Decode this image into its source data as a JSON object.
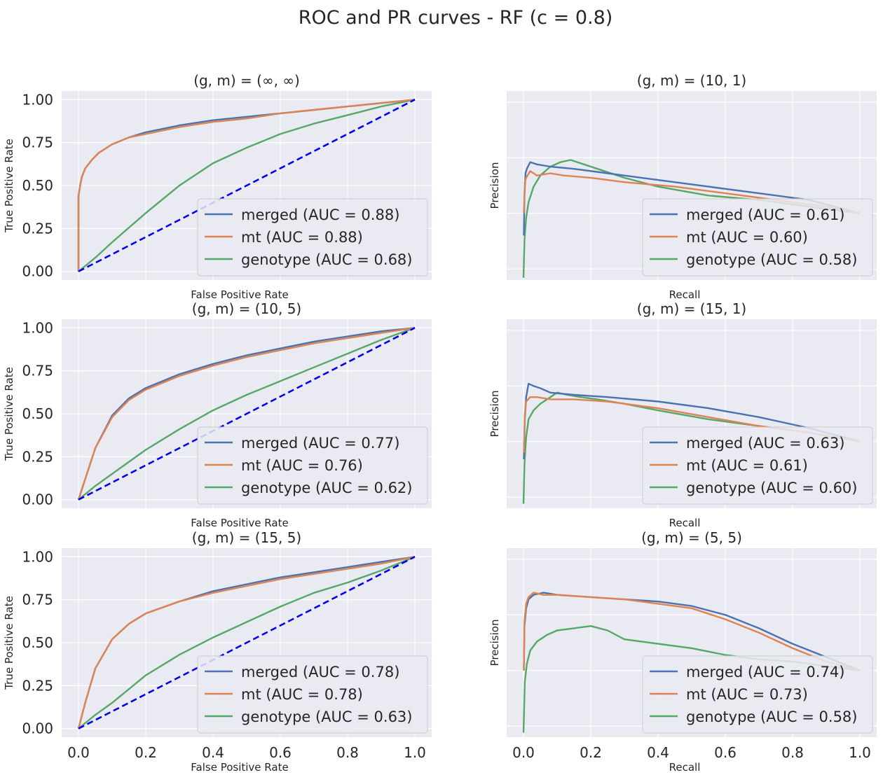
{
  "suptitle": "ROC and PR curves - RF (c = 0.8)",
  "colors": {
    "merged": "#4c72b0",
    "mt": "#dd8452",
    "genotype": "#55a868",
    "diagonal": "#0000ee",
    "panel_bg": "#eaeaf2",
    "grid": "#ffffff"
  },
  "chart_data": [
    {
      "type": "line",
      "kind": "roc",
      "title": "(g, m) = (∞, ∞)",
      "xlabel": "False Positive Rate",
      "ylabel": "True Positive Rate",
      "xlim": [
        -0.05,
        1.05
      ],
      "ylim": [
        -0.05,
        1.05
      ],
      "grid": true,
      "legend": "lower-right",
      "show_xticks": false,
      "show_yticks": true,
      "xticks": [
        "0.0",
        "0.2",
        "0.4",
        "0.6",
        "0.8",
        "1.0"
      ],
      "yticks": [
        "0.00",
        "0.25",
        "0.50",
        "0.75",
        "1.00"
      ],
      "series": [
        {
          "name": "merged (AUC = 0.88)",
          "color": "#4c72b0",
          "x": [
            0,
            0,
            0.005,
            0.01,
            0.02,
            0.04,
            0.06,
            0.1,
            0.15,
            0.2,
            0.3,
            0.4,
            0.5,
            0.6,
            0.7,
            0.8,
            0.9,
            1.0
          ],
          "y": [
            0,
            0.44,
            0.5,
            0.55,
            0.6,
            0.65,
            0.69,
            0.74,
            0.78,
            0.81,
            0.85,
            0.88,
            0.9,
            0.92,
            0.94,
            0.96,
            0.98,
            1.0
          ]
        },
        {
          "name": "mt (AUC = 0.88)",
          "color": "#dd8452",
          "x": [
            0,
            0,
            0.005,
            0.01,
            0.02,
            0.04,
            0.06,
            0.1,
            0.15,
            0.2,
            0.3,
            0.4,
            0.5,
            0.6,
            0.7,
            0.8,
            0.9,
            1.0
          ],
          "y": [
            0,
            0.44,
            0.5,
            0.55,
            0.6,
            0.65,
            0.69,
            0.74,
            0.78,
            0.8,
            0.84,
            0.87,
            0.89,
            0.92,
            0.94,
            0.96,
            0.98,
            1.0
          ]
        },
        {
          "name": "genotype (AUC = 0.68)",
          "color": "#55a868",
          "x": [
            0,
            0.05,
            0.1,
            0.2,
            0.3,
            0.4,
            0.5,
            0.6,
            0.7,
            0.8,
            0.9,
            1.0
          ],
          "y": [
            0,
            0.08,
            0.17,
            0.34,
            0.5,
            0.63,
            0.72,
            0.8,
            0.86,
            0.91,
            0.96,
            1.0
          ]
        },
        {
          "name": "",
          "color": "#0000ee",
          "dashed": true,
          "x": [
            0,
            1
          ],
          "y": [
            0,
            1
          ]
        }
      ]
    },
    {
      "type": "line",
      "kind": "pr",
      "title": "(g, m) = (10, 1)",
      "xlabel": "Recall",
      "ylabel": "Precision",
      "xlim": [
        -0.05,
        1.05
      ],
      "ylim": [
        0.2,
        1.05
      ],
      "grid": true,
      "legend": "lower-right",
      "show_xticks": false,
      "show_yticks": false,
      "xticks": [
        "0.0",
        "0.2",
        "0.4",
        "0.6",
        "0.8",
        "1.0"
      ],
      "yticks": [],
      "series": [
        {
          "name": "merged (AUC = 0.61)",
          "color": "#4c72b0",
          "x": [
            0.001,
            0.003,
            0.006,
            0.01,
            0.02,
            0.04,
            0.08,
            0.15,
            0.25,
            0.4,
            0.55,
            0.7,
            0.85,
            1.0
          ],
          "y": [
            0.4,
            0.58,
            0.68,
            0.7,
            0.73,
            0.72,
            0.71,
            0.7,
            0.68,
            0.65,
            0.62,
            0.59,
            0.56,
            0.5
          ]
        },
        {
          "name": "mt (AUC = 0.60)",
          "color": "#dd8452",
          "x": [
            0.001,
            0.004,
            0.008,
            0.02,
            0.04,
            0.08,
            0.12,
            0.2,
            0.3,
            0.45,
            0.6,
            0.75,
            0.9,
            1.0
          ],
          "y": [
            0.5,
            0.64,
            0.66,
            0.69,
            0.67,
            0.68,
            0.67,
            0.66,
            0.64,
            0.62,
            0.59,
            0.56,
            0.53,
            0.5
          ]
        },
        {
          "name": "genotype (AUC = 0.58)",
          "color": "#55a868",
          "x": [
            0.0,
            0.003,
            0.008,
            0.015,
            0.03,
            0.05,
            0.08,
            0.11,
            0.14,
            0.18,
            0.22,
            0.3,
            0.4,
            0.55,
            0.7,
            0.85,
            1.0
          ],
          "y": [
            0.21,
            0.38,
            0.48,
            0.55,
            0.62,
            0.67,
            0.71,
            0.73,
            0.74,
            0.72,
            0.7,
            0.66,
            0.62,
            0.58,
            0.56,
            0.53,
            0.5
          ]
        }
      ]
    },
    {
      "type": "line",
      "kind": "roc",
      "title": "(g, m) = (10, 5)",
      "xlabel": "False Positive Rate",
      "ylabel": "True Positive Rate",
      "xlim": [
        -0.05,
        1.05
      ],
      "ylim": [
        -0.05,
        1.05
      ],
      "grid": true,
      "legend": "lower-right",
      "show_xticks": false,
      "show_yticks": true,
      "xticks": [
        "0.0",
        "0.2",
        "0.4",
        "0.6",
        "0.8",
        "1.0"
      ],
      "yticks": [
        "0.00",
        "0.25",
        "0.50",
        "0.75",
        "1.00"
      ],
      "series": [
        {
          "name": "merged (AUC = 0.77)",
          "color": "#4c72b0",
          "x": [
            0,
            0.02,
            0.05,
            0.1,
            0.15,
            0.2,
            0.3,
            0.4,
            0.5,
            0.6,
            0.7,
            0.8,
            0.9,
            1.0
          ],
          "y": [
            0,
            0.12,
            0.3,
            0.49,
            0.59,
            0.65,
            0.73,
            0.79,
            0.84,
            0.88,
            0.92,
            0.95,
            0.98,
            1.0
          ]
        },
        {
          "name": "mt (AUC = 0.76)",
          "color": "#dd8452",
          "x": [
            0,
            0.02,
            0.05,
            0.1,
            0.15,
            0.2,
            0.3,
            0.4,
            0.5,
            0.6,
            0.7,
            0.8,
            0.9,
            1.0
          ],
          "y": [
            0,
            0.12,
            0.3,
            0.48,
            0.58,
            0.64,
            0.72,
            0.78,
            0.83,
            0.87,
            0.91,
            0.94,
            0.97,
            1.0
          ]
        },
        {
          "name": "genotype (AUC = 0.62)",
          "color": "#55a868",
          "x": [
            0,
            0.05,
            0.1,
            0.2,
            0.3,
            0.4,
            0.5,
            0.6,
            0.7,
            0.8,
            0.9,
            1.0
          ],
          "y": [
            0,
            0.08,
            0.15,
            0.29,
            0.41,
            0.52,
            0.61,
            0.69,
            0.77,
            0.85,
            0.93,
            1.0
          ]
        },
        {
          "name": "",
          "color": "#0000ee",
          "dashed": true,
          "x": [
            0,
            1
          ],
          "y": [
            0,
            1
          ]
        }
      ]
    },
    {
      "type": "line",
      "kind": "pr",
      "title": "(g, m) = (15, 1)",
      "xlabel": "Recall",
      "ylabel": "Precision",
      "xlim": [
        -0.05,
        1.05
      ],
      "ylim": [
        0.2,
        1.05
      ],
      "grid": true,
      "legend": "lower-right",
      "show_xticks": false,
      "show_yticks": false,
      "xticks": [
        "0.0",
        "0.2",
        "0.4",
        "0.6",
        "0.8",
        "1.0"
      ],
      "yticks": [],
      "series": [
        {
          "name": "merged (AUC = 0.63)",
          "color": "#4c72b0",
          "x": [
            0.001,
            0.004,
            0.008,
            0.015,
            0.03,
            0.05,
            0.08,
            0.15,
            0.25,
            0.4,
            0.55,
            0.7,
            0.85,
            1.0
          ],
          "y": [
            0.42,
            0.6,
            0.7,
            0.76,
            0.75,
            0.74,
            0.72,
            0.71,
            0.7,
            0.68,
            0.65,
            0.61,
            0.56,
            0.5
          ]
        },
        {
          "name": "mt (AUC = 0.61)",
          "color": "#dd8452",
          "x": [
            0.001,
            0.004,
            0.008,
            0.02,
            0.04,
            0.08,
            0.15,
            0.25,
            0.4,
            0.55,
            0.7,
            0.85,
            1.0
          ],
          "y": [
            0.45,
            0.62,
            0.68,
            0.7,
            0.7,
            0.69,
            0.69,
            0.68,
            0.65,
            0.61,
            0.57,
            0.54,
            0.5
          ]
        },
        {
          "name": "genotype (AUC = 0.60)",
          "color": "#55a868",
          "x": [
            0.0,
            0.003,
            0.008,
            0.015,
            0.03,
            0.05,
            0.08,
            0.1,
            0.13,
            0.17,
            0.22,
            0.3,
            0.4,
            0.55,
            0.7,
            0.85,
            1.0
          ],
          "y": [
            0.22,
            0.4,
            0.52,
            0.6,
            0.64,
            0.67,
            0.7,
            0.72,
            0.71,
            0.7,
            0.69,
            0.67,
            0.64,
            0.6,
            0.57,
            0.54,
            0.5
          ]
        }
      ]
    },
    {
      "type": "line",
      "kind": "roc",
      "title": "(g, m) = (15, 5)",
      "xlabel": "False Positive Rate",
      "ylabel": "True Positive Rate",
      "xlim": [
        -0.05,
        1.05
      ],
      "ylim": [
        -0.05,
        1.05
      ],
      "grid": true,
      "legend": "lower-right",
      "show_xticks": true,
      "show_yticks": true,
      "xticks": [
        "0.0",
        "0.2",
        "0.4",
        "0.6",
        "0.8",
        "1.0"
      ],
      "yticks": [
        "0.00",
        "0.25",
        "0.50",
        "0.75",
        "1.00"
      ],
      "series": [
        {
          "name": "merged (AUC = 0.78)",
          "color": "#4c72b0",
          "x": [
            0,
            0.02,
            0.05,
            0.1,
            0.15,
            0.2,
            0.3,
            0.4,
            0.5,
            0.6,
            0.7,
            0.8,
            0.9,
            1.0
          ],
          "y": [
            0,
            0.15,
            0.35,
            0.52,
            0.61,
            0.67,
            0.74,
            0.8,
            0.84,
            0.88,
            0.91,
            0.94,
            0.97,
            1.0
          ]
        },
        {
          "name": "mt (AUC = 0.78)",
          "color": "#dd8452",
          "x": [
            0,
            0.02,
            0.05,
            0.1,
            0.15,
            0.2,
            0.3,
            0.4,
            0.5,
            0.6,
            0.7,
            0.8,
            0.9,
            1.0
          ],
          "y": [
            0,
            0.15,
            0.35,
            0.52,
            0.61,
            0.67,
            0.74,
            0.79,
            0.83,
            0.87,
            0.9,
            0.93,
            0.96,
            1.0
          ]
        },
        {
          "name": "genotype (AUC = 0.63)",
          "color": "#55a868",
          "x": [
            0,
            0.05,
            0.1,
            0.2,
            0.3,
            0.4,
            0.5,
            0.6,
            0.7,
            0.8,
            0.9,
            1.0
          ],
          "y": [
            0,
            0.08,
            0.15,
            0.31,
            0.43,
            0.53,
            0.62,
            0.71,
            0.79,
            0.85,
            0.92,
            1.0
          ]
        },
        {
          "name": "",
          "color": "#0000ee",
          "dashed": true,
          "x": [
            0,
            1
          ],
          "y": [
            0,
            1
          ]
        }
      ]
    },
    {
      "type": "line",
      "kind": "pr",
      "title": "(g, m) = (5, 5)",
      "xlabel": "Recall",
      "ylabel": "Precision",
      "xlim": [
        -0.05,
        1.05
      ],
      "ylim": [
        0.2,
        1.05
      ],
      "grid": true,
      "legend": "lower-right",
      "show_xticks": true,
      "show_yticks": false,
      "xticks": [
        "0.0",
        "0.2",
        "0.4",
        "0.6",
        "0.8",
        "1.0"
      ],
      "yticks": [],
      "series": [
        {
          "name": "merged (AUC = 0.74)",
          "color": "#4c72b0",
          "x": [
            0.001,
            0.003,
            0.008,
            0.015,
            0.03,
            0.06,
            0.1,
            0.2,
            0.3,
            0.4,
            0.5,
            0.6,
            0.7,
            0.8,
            0.9,
            1.0
          ],
          "y": [
            0.5,
            0.7,
            0.78,
            0.82,
            0.84,
            0.85,
            0.84,
            0.83,
            0.82,
            0.81,
            0.79,
            0.75,
            0.69,
            0.62,
            0.56,
            0.5
          ]
        },
        {
          "name": "mt (AUC = 0.73)",
          "color": "#dd8452",
          "x": [
            0.001,
            0.003,
            0.008,
            0.015,
            0.03,
            0.06,
            0.1,
            0.2,
            0.3,
            0.4,
            0.5,
            0.6,
            0.7,
            0.8,
            0.9,
            1.0
          ],
          "y": [
            0.5,
            0.72,
            0.8,
            0.83,
            0.85,
            0.84,
            0.84,
            0.83,
            0.82,
            0.8,
            0.78,
            0.73,
            0.67,
            0.6,
            0.54,
            0.5
          ]
        },
        {
          "name": "genotype (AUC = 0.58)",
          "color": "#55a868",
          "x": [
            0.0,
            0.004,
            0.01,
            0.02,
            0.04,
            0.07,
            0.1,
            0.15,
            0.2,
            0.25,
            0.3,
            0.4,
            0.5,
            0.6,
            0.7,
            0.8,
            0.9,
            1.0
          ],
          "y": [
            0.22,
            0.45,
            0.53,
            0.59,
            0.63,
            0.66,
            0.68,
            0.69,
            0.7,
            0.68,
            0.64,
            0.62,
            0.6,
            0.57,
            0.55,
            0.54,
            0.52,
            0.5
          ]
        }
      ]
    }
  ]
}
